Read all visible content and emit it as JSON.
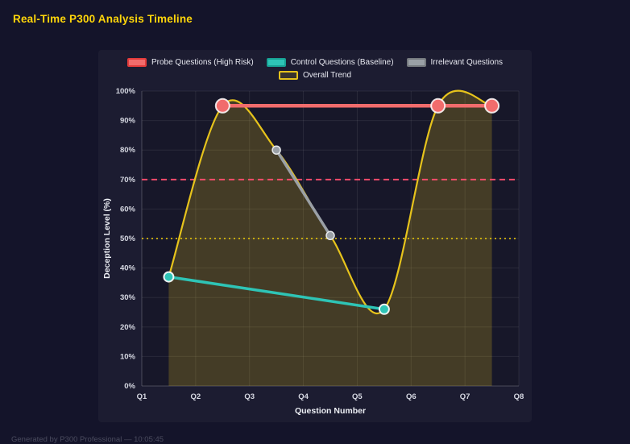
{
  "header": {
    "title": "Real-Time P300 Analysis Timeline"
  },
  "footer": {
    "text": "Generated by P300 Professional — 10:05:45"
  },
  "chart_data": {
    "type": "line",
    "title": "Real-Time P300 Analysis Timeline",
    "xlabel": "Question Number",
    "ylabel": "Deception Level (%)",
    "xlim": [
      1,
      8
    ],
    "ylim": [
      0,
      100
    ],
    "grid": true,
    "legend_position": "top",
    "x_ticks": [
      {
        "value": 1,
        "label": "Q1"
      },
      {
        "value": 2,
        "label": "Q2"
      },
      {
        "value": 3,
        "label": "Q3"
      },
      {
        "value": 4,
        "label": "Q4"
      },
      {
        "value": 5,
        "label": "Q5"
      },
      {
        "value": 6,
        "label": "Q6"
      },
      {
        "value": 7,
        "label": "Q7"
      },
      {
        "value": 8,
        "label": "Q8"
      }
    ],
    "y_ticks": [
      {
        "value": 0,
        "label": "0%"
      },
      {
        "value": 10,
        "label": "10%"
      },
      {
        "value": 20,
        "label": "20%"
      },
      {
        "value": 30,
        "label": "30%"
      },
      {
        "value": 40,
        "label": "40%"
      },
      {
        "value": 50,
        "label": "50%"
      },
      {
        "value": 60,
        "label": "60%"
      },
      {
        "value": 70,
        "label": "70%"
      },
      {
        "value": 80,
        "label": "80%"
      },
      {
        "value": 90,
        "label": "90%"
      },
      {
        "value": 100,
        "label": "100%"
      }
    ],
    "legend": [
      {
        "label": "Probe Questions (High Risk)",
        "fill": "#f16c6c",
        "border": "#e23b3b"
      },
      {
        "label": "Control Questions (Baseline)",
        "fill": "#2ec4b6",
        "border": "#17a093"
      },
      {
        "label": "Irrelevant Questions",
        "fill": "#9aa0a6",
        "border": "#75797e"
      },
      {
        "label": "Overall Trend",
        "fill": "rgba(230,195,28,0.15)",
        "border": "#e6c31c"
      }
    ],
    "series": [
      {
        "name": "Overall Trend",
        "color": "#e6c31c",
        "line_width": 2.2,
        "smooth": true,
        "fill_color": "rgba(230,195,28,0.22)",
        "points": [
          [
            1.5,
            37
          ],
          [
            2.5,
            95
          ],
          [
            3.5,
            80
          ],
          [
            4.5,
            51
          ],
          [
            5.5,
            26
          ],
          [
            6.5,
            95
          ],
          [
            7.5,
            95
          ]
        ]
      },
      {
        "name": "Control Questions (Baseline)",
        "color": "#2ec4b6",
        "line_width": 3.5,
        "marker_radius": 6,
        "marker_border": "rgba(255,255,255,0.9)",
        "marker_border_width": 2,
        "points": [
          [
            1.5,
            37
          ],
          [
            5.5,
            26
          ]
        ]
      },
      {
        "name": "Irrelevant Questions",
        "color": "#9aa0a6",
        "line_width": 3.5,
        "marker_radius": 5,
        "marker_border": "#e8eaec",
        "marker_border_width": 1.5,
        "points": [
          [
            3.5,
            80
          ],
          [
            4.5,
            51
          ]
        ]
      },
      {
        "name": "Probe Questions (High Risk)",
        "color": "#f16c6c",
        "line_width": 4.5,
        "marker_radius": 8.5,
        "marker_border": "rgba(255,255,255,0.85)",
        "marker_border_width": 2,
        "points": [
          [
            2.5,
            95
          ],
          [
            6.5,
            95
          ],
          [
            7.5,
            95
          ]
        ]
      }
    ],
    "reference_lines": [
      {
        "name": "high-risk-threshold",
        "y": 70,
        "color": "#ff4d6d",
        "dash": "7 5",
        "width": 1.8
      },
      {
        "name": "baseline-threshold",
        "y": 50,
        "color": "#d9b90e",
        "dash": "2 4",
        "width": 1.8
      }
    ]
  }
}
